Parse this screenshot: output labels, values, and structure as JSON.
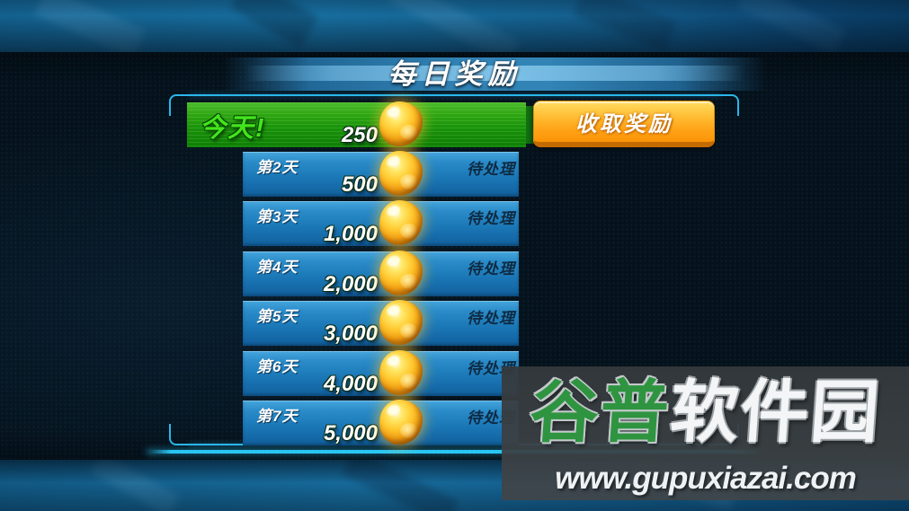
{
  "title": "每日奖励",
  "panel": {
    "today": {
      "label": "今天!",
      "amount": "250"
    },
    "claim_button_label": "收取奖励",
    "days": [
      {
        "label": "第2天",
        "amount": "500",
        "status": "待处理"
      },
      {
        "label": "第3天",
        "amount": "1,000",
        "status": "待处理"
      },
      {
        "label": "第4天",
        "amount": "2,000",
        "status": "待处理"
      },
      {
        "label": "第5天",
        "amount": "3,000",
        "status": "待处理"
      },
      {
        "label": "第6天",
        "amount": "4,000",
        "status": "待处理"
      },
      {
        "label": "第7天",
        "amount": "5,000",
        "status": "待处理"
      }
    ]
  },
  "watermark": {
    "logo_green": "谷普",
    "logo_white": "软件园",
    "url": "www.gupuxiazai.com"
  },
  "colors": {
    "frame_cyan": "#2bb6ea",
    "today_green_text": "#43e61c",
    "green_bar": "#1a930b",
    "row_blue": "#1b77b6",
    "button_orange": "#ffa217",
    "gold": "#ffc72e",
    "pending_text": "#0e2a42",
    "watermark_green": "#2e9440",
    "title_band_blue": "#348abe"
  }
}
